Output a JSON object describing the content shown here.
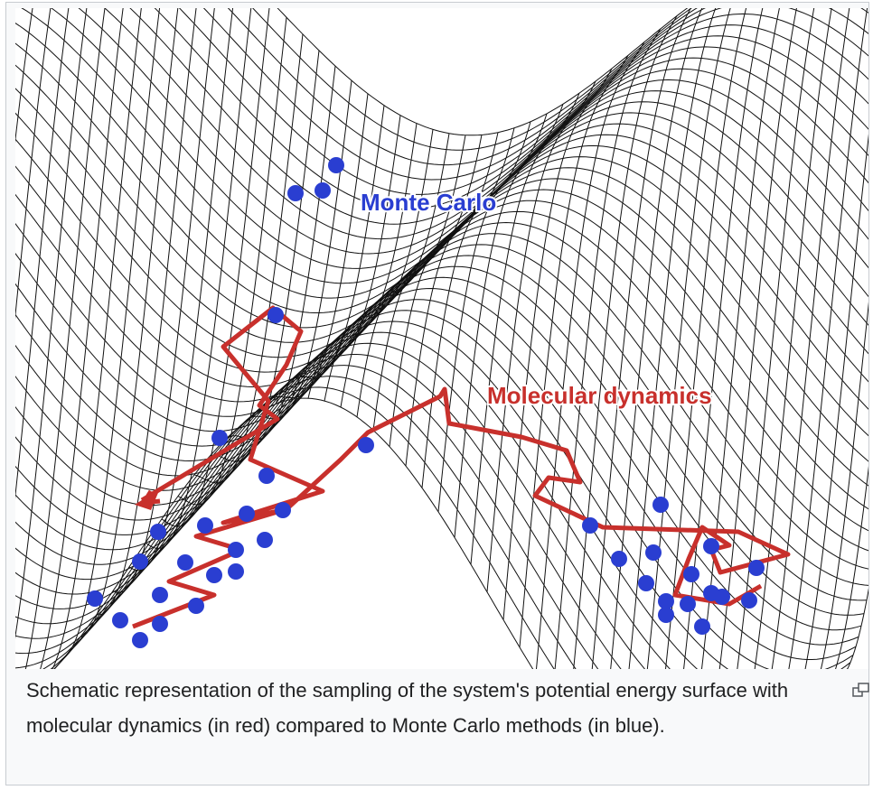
{
  "figure": {
    "labels": {
      "monte_carlo": "Monte Carlo",
      "molecular_dynamics": "Molecular dynamics"
    },
    "caption": "Schematic representation of the sampling of the system's potential energy surface with molecular dynamics (in red) compared to Monte Carlo methods (in blue)."
  }
}
